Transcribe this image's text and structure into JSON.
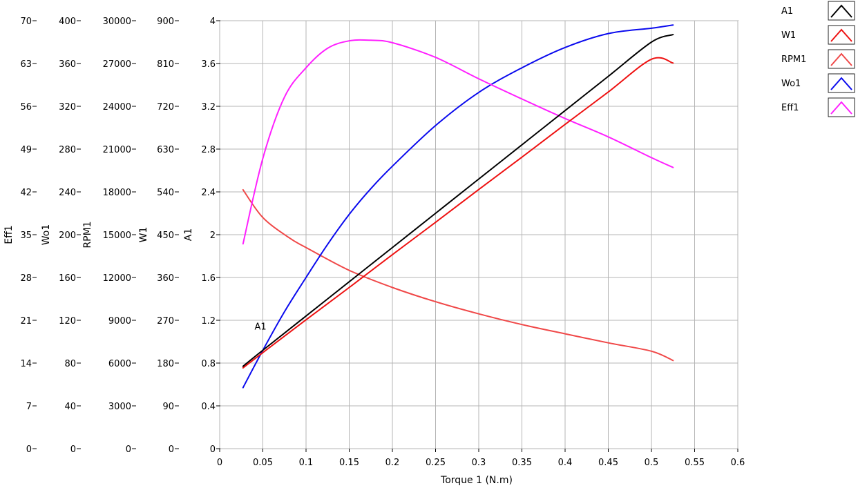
{
  "chart_data": {
    "type": "line",
    "xlabel": "Torque 1 (N.m)",
    "xlim": [
      0,
      0.6
    ],
    "x_ticks": [
      0,
      0.05,
      0.1,
      0.15,
      0.2,
      0.25,
      0.3,
      0.35,
      0.4,
      0.45,
      0.5,
      0.55,
      0.6
    ],
    "x_tick_labels": [
      "0",
      "0.05",
      "0.1",
      "0.15",
      "0.2",
      "0.25",
      "0.3",
      "0.35",
      "0.4",
      "0.45",
      "0.5",
      "0.55",
      "0.6"
    ],
    "grid": true,
    "legend_position": "top-right",
    "y_axes": [
      {
        "label": "Eff1",
        "range": [
          0,
          70
        ],
        "ticks": [
          "0",
          "7",
          "14",
          "21",
          "28",
          "35",
          "42",
          "49",
          "56",
          "63",
          "70"
        ]
      },
      {
        "label": "Wo1",
        "range": [
          0,
          400
        ],
        "ticks": [
          "0",
          "40",
          "80",
          "120",
          "160",
          "200",
          "240",
          "280",
          "320",
          "360",
          "400"
        ]
      },
      {
        "label": "RPM1",
        "range": [
          0,
          30000
        ],
        "ticks": [
          "0",
          "3000",
          "6000",
          "9000",
          "12000",
          "15000",
          "18000",
          "21000",
          "24000",
          "27000",
          "30000"
        ]
      },
      {
        "label": "W1",
        "range": [
          0,
          900
        ],
        "ticks": [
          "0",
          "90",
          "180",
          "270",
          "360",
          "450",
          "540",
          "630",
          "720",
          "810",
          "900"
        ]
      },
      {
        "label": "A1",
        "range": [
          0,
          4
        ],
        "ticks": [
          "0",
          "0.4",
          "0.8",
          "1.2",
          "1.6",
          "2",
          "2.4",
          "2.8",
          "3.2",
          "3.6",
          "4"
        ]
      }
    ],
    "series": [
      {
        "name": "A1",
        "axis": "A1",
        "color": "#000000",
        "x": [
          0.027,
          0.05,
          0.1,
          0.15,
          0.2,
          0.25,
          0.3,
          0.35,
          0.4,
          0.45,
          0.5,
          0.525
        ],
        "y": [
          0.77,
          0.92,
          1.24,
          1.56,
          1.88,
          2.2,
          2.52,
          2.84,
          3.16,
          3.48,
          3.8,
          3.87
        ]
      },
      {
        "name": "W1",
        "axis": "W1",
        "color": "#ee1111",
        "x": [
          0.027,
          0.05,
          0.1,
          0.15,
          0.2,
          0.25,
          0.3,
          0.35,
          0.4,
          0.45,
          0.5,
          0.525
        ],
        "y": [
          170,
          202,
          271,
          339,
          408,
          476,
          545,
          613,
          682,
          750,
          819,
          811
        ]
      },
      {
        "name": "RPM1",
        "axis": "RPM1",
        "color": "#f04848",
        "x": [
          0.027,
          0.05,
          0.08,
          0.1,
          0.15,
          0.2,
          0.25,
          0.3,
          0.35,
          0.4,
          0.45,
          0.5,
          0.525
        ],
        "y": [
          18150,
          16200,
          14800,
          14100,
          12500,
          11300,
          10300,
          9450,
          8700,
          8050,
          7420,
          6830,
          6180
        ]
      },
      {
        "name": "Wo1",
        "axis": "Wo1",
        "color": "#0a0aee",
        "x": [
          0.027,
          0.05,
          0.075,
          0.1,
          0.125,
          0.15,
          0.175,
          0.2,
          0.25,
          0.3,
          0.35,
          0.4,
          0.45,
          0.5,
          0.525
        ],
        "y": [
          57,
          92,
          128,
          160,
          191,
          219,
          243,
          264,
          302,
          333,
          356,
          375,
          388,
          393,
          396
        ]
      },
      {
        "name": "Eff1",
        "axis": "Eff1",
        "color": "#ff20ff",
        "x": [
          0.027,
          0.05,
          0.075,
          0.1,
          0.125,
          0.15,
          0.175,
          0.2,
          0.25,
          0.3,
          0.35,
          0.4,
          0.45,
          0.5,
          0.525
        ],
        "y": [
          33.5,
          47.5,
          57.5,
          62.3,
          65.5,
          66.7,
          66.8,
          66.4,
          64.0,
          60.5,
          57.2,
          54.0,
          51.0,
          47.6,
          46.0
        ]
      }
    ],
    "annotations": [
      {
        "text": "A1",
        "x": 0.05,
        "y": 0.92,
        "axis": "A1"
      }
    ]
  }
}
